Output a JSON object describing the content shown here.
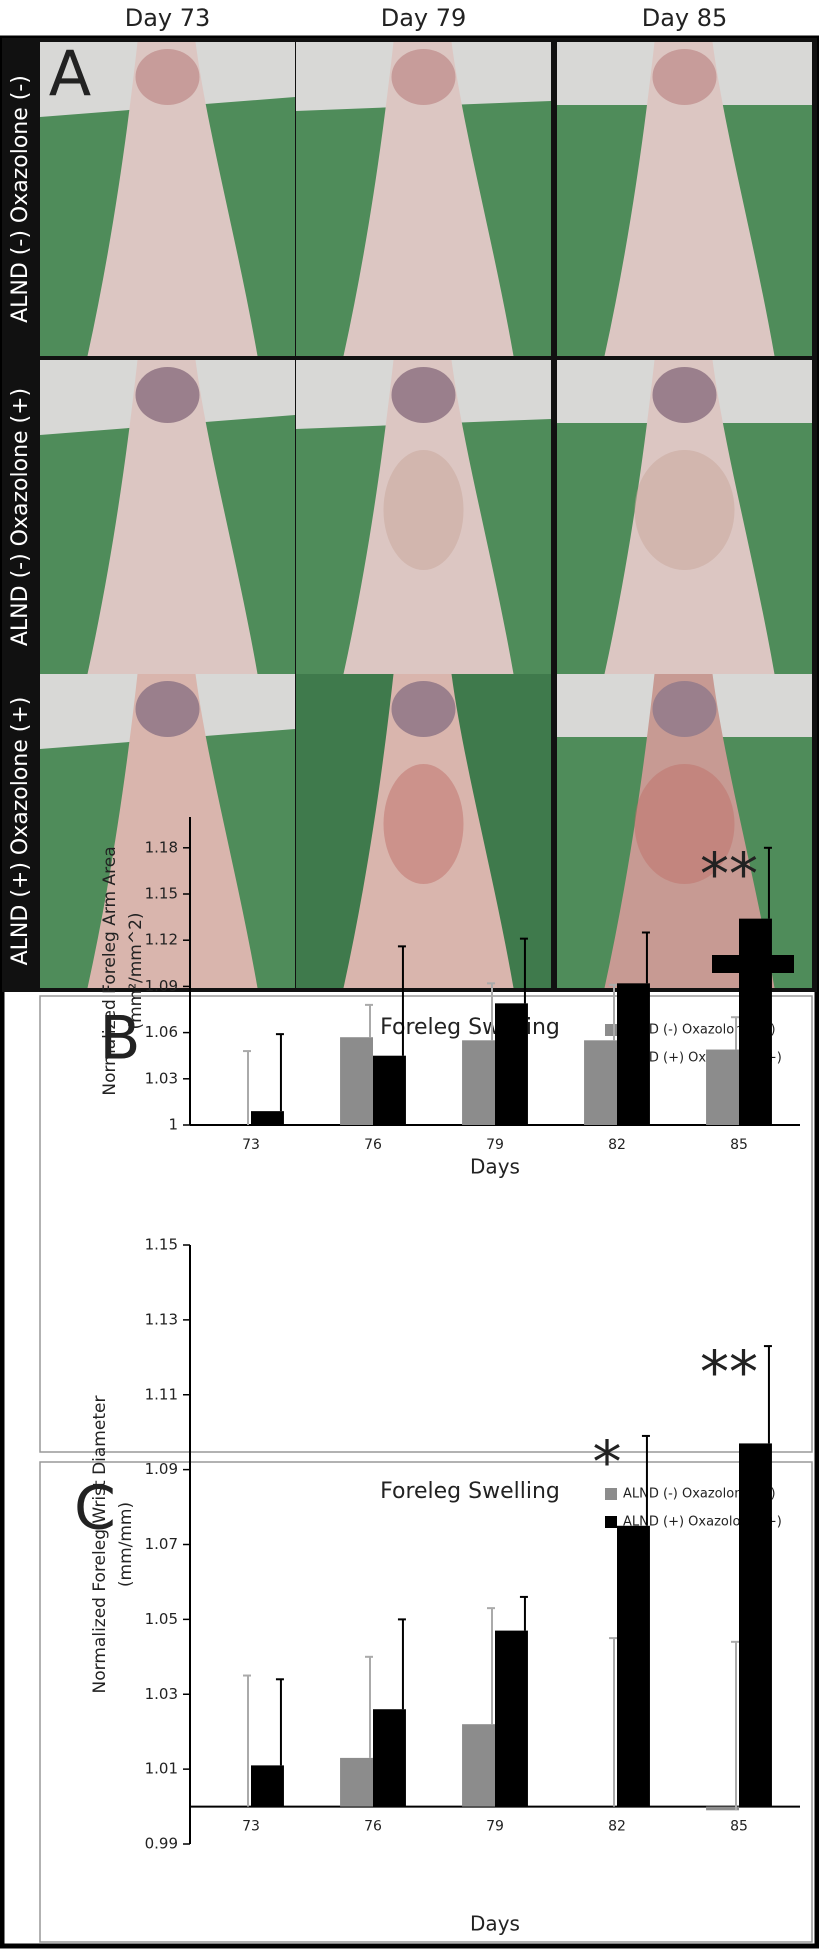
{
  "panel_a": {
    "letter": "A",
    "columns": [
      "Day 73",
      "Day 79",
      "Day 85"
    ],
    "rows": [
      "ALND (-) Oxazolone (-)",
      "ALND (-) Oxazolone (+)",
      "ALND (+) Oxazolone (+)"
    ]
  },
  "chart_data": [
    {
      "type": "bar",
      "letter": "B",
      "title": "Foreleg Swelling",
      "ylabel": [
        "Normalized Foreleg Arm Area",
        "(mm²/mm^2)"
      ],
      "xlabel": "Days",
      "categories": [
        "73",
        "76",
        "79",
        "82",
        "85"
      ],
      "series": [
        {
          "name": "ALND (-) Oxazolone (+)",
          "color": "#8c8c8c",
          "values": [
            1.0,
            1.057,
            1.055,
            1.055,
            1.049
          ],
          "errors": [
            0.048,
            0.021,
            0.037,
            0.036,
            0.021
          ]
        },
        {
          "name": "ALND (+) Oxazolone (+)",
          "color": "#000000",
          "values": [
            1.009,
            1.045,
            1.079,
            1.092,
            1.134
          ],
          "errors": [
            0.05,
            0.071,
            0.042,
            0.033,
            0.046
          ]
        }
      ],
      "ylim": [
        1,
        1.2
      ],
      "yticks": [
        1,
        1.03,
        1.06,
        1.09,
        1.12,
        1.15,
        1.18
      ],
      "xaxis_at": 1,
      "annotations": [
        {
          "text": "**",
          "category": "85"
        }
      ]
    },
    {
      "type": "bar",
      "letter": "C",
      "title": "Foreleg Swelling",
      "ylabel": [
        "Normalized Foreleg Wrist Diameter",
        "(mm/mm)"
      ],
      "xlabel": "Days",
      "categories": [
        "73",
        "76",
        "79",
        "82",
        "85"
      ],
      "series": [
        {
          "name": "ALND (-) Oxazolone (+)",
          "color": "#8c8c8c",
          "values": [
            1.0,
            1.013,
            1.022,
            1.0,
            0.999
          ],
          "errors": [
            0.035,
            0.027,
            0.031,
            0.045,
            0.045
          ]
        },
        {
          "name": "ALND (+) Oxazolone (+)",
          "color": "#000000",
          "values": [
            1.011,
            1.026,
            1.047,
            1.075,
            1.097
          ],
          "errors": [
            0.023,
            0.024,
            0.009,
            0.024,
            0.026
          ]
        }
      ],
      "ylim": [
        0.99,
        1.15
      ],
      "yticks": [
        0.99,
        1.01,
        1.03,
        1.05,
        1.07,
        1.09,
        1.11,
        1.13,
        1.15
      ],
      "xaxis_at": 1,
      "annotations": [
        {
          "text": "*",
          "category": "82"
        },
        {
          "text": "**",
          "category": "85"
        }
      ]
    }
  ]
}
